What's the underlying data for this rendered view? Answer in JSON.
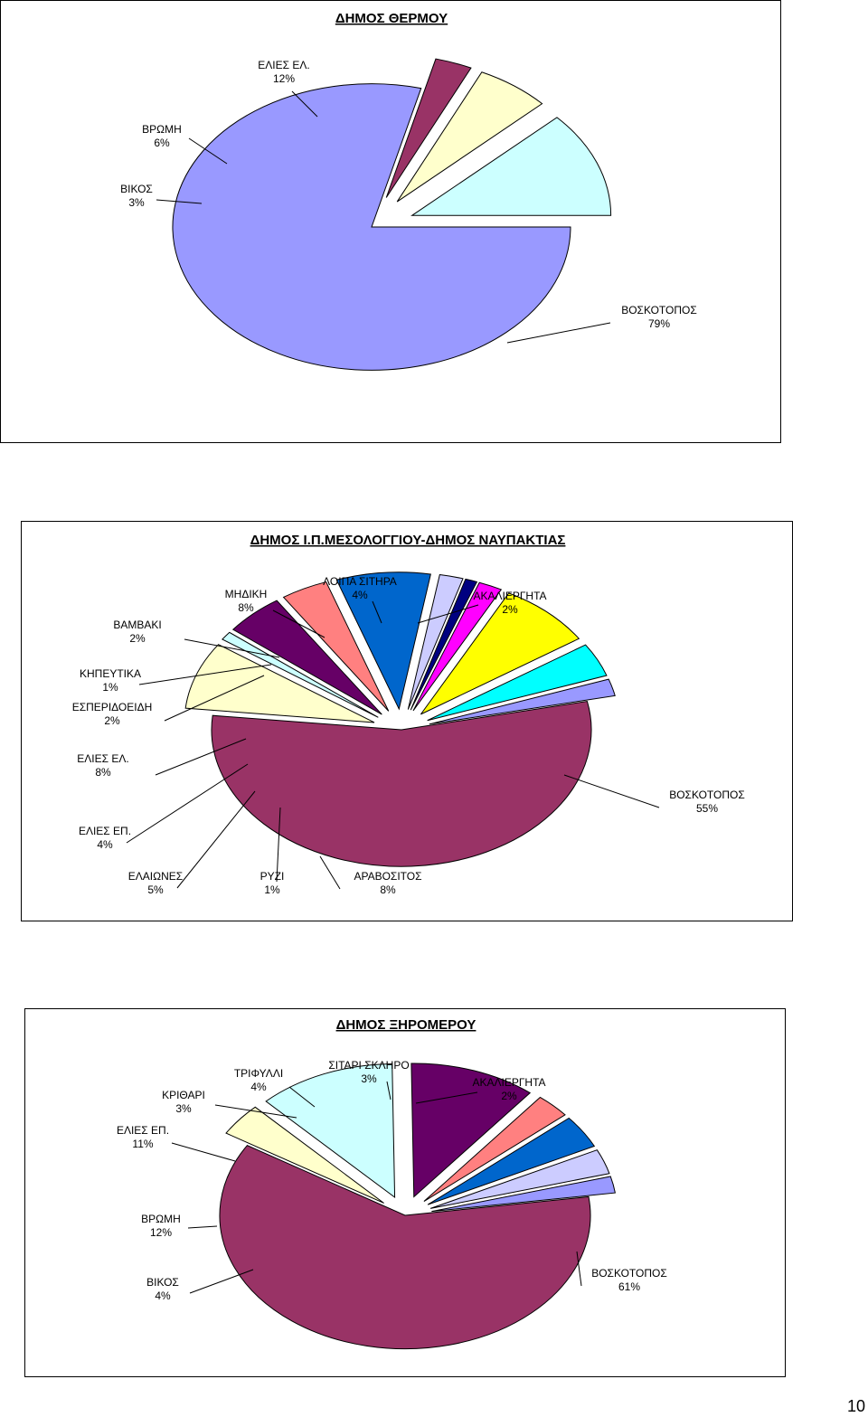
{
  "page_number": "10",
  "chart_data": [
    {
      "type": "pie",
      "title": "ΔΗΜΟΣ ΘΕΡΜΟΥ",
      "categories": [
        "ΒΟΣΚΟΤΟΠΟΣ",
        "ΒΙΚΟΣ",
        "ΒΡΩΜΗ",
        "ΕΛΙΕΣ ΕΛ."
      ],
      "values": [
        79,
        3,
        6,
        12
      ],
      "value_labels": [
        "79%",
        "3%",
        "6%",
        "12%"
      ],
      "colors": [
        "#9999ff",
        "#993366",
        "#ffffcc",
        "#ccffff"
      ],
      "exploded": true,
      "legend": "none"
    },
    {
      "type": "pie",
      "title": "ΔΗΜΟΣ Ι.Π.ΜΕΣΟΛΟΓΓΙΟΥ-ΔΗΜΟΣ ΝΑΥΠΑΚΤΙΑΣ",
      "categories": [
        "ΒΟΣΚΟΤΟΠΟΣ",
        "ΑΡΑΒΟΣΙΤΟΣ",
        "ΡΥΖΙ",
        "ΕΛΑΙΩΝΕΣ",
        "ΕΛΙΕΣ ΕΠ.",
        "ΕΛΙΕΣ ΕΛ.",
        "ΕΣΠΕΡΙΔΟΕΙΔΗ",
        "ΚΗΠΕΥΤΙΚΑ",
        "ΒΑΜΒΑΚΙ",
        "ΜΗΔΙΚΗ",
        "ΛΟΙΠΑ ΣΙΤΗΡΑ",
        "ΑΚΑΛΙΕΡΓΗΤΑ"
      ],
      "values": [
        55,
        8,
        1,
        5,
        4,
        8,
        2,
        1,
        2,
        8,
        4,
        2
      ],
      "value_labels": [
        "55%",
        "8%",
        "1%",
        "5%",
        "4%",
        "8%",
        "2%",
        "1%",
        "2%",
        "8%",
        "4%",
        "2%"
      ],
      "colors": [
        "#993366",
        "#ffffcc",
        "#ccffff",
        "#660066",
        "#ff8080",
        "#0066cc",
        "#ccccff",
        "#000080",
        "#ff00ff",
        "#ffff00",
        "#00ffff",
        "#9999ff"
      ],
      "exploded": true,
      "legend": "none"
    },
    {
      "type": "pie",
      "title": "ΔΗΜΟΣ ΞΗΡΟΜΕΡΟΥ",
      "categories": [
        "ΒΟΣΚΟΤΟΠΟΣ",
        "ΒΙΚΟΣ",
        "ΒΡΩΜΗ",
        "ΕΛΙΕΣ ΕΠ.",
        "ΚΡΙΘΑΡΙ",
        "ΤΡΙΦΥΛΛΙ",
        "ΣΙΤΑΡΙ ΣΚΛΗΡΟ",
        "ΑΚΑΛΙΕΡΓΗΤΑ"
      ],
      "values": [
        61,
        4,
        12,
        11,
        3,
        4,
        3,
        2
      ],
      "value_labels": [
        "61%",
        "4%",
        "12%",
        "11%",
        "3%",
        "4%",
        "3%",
        "2%"
      ],
      "colors": [
        "#993366",
        "#ffffcc",
        "#ccffff",
        "#660066",
        "#ff8080",
        "#0066cc",
        "#ccccff",
        "#9999ff"
      ],
      "exploded": true,
      "legend": "none"
    }
  ]
}
